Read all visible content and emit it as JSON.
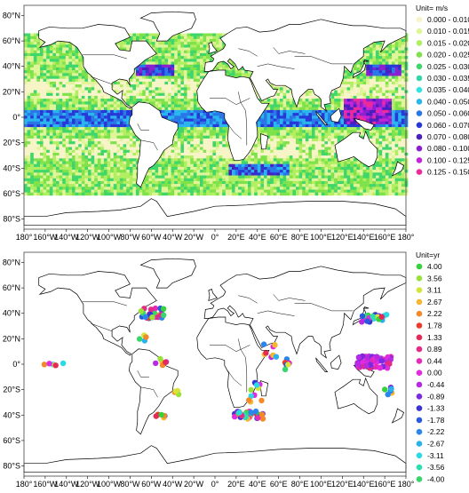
{
  "maps": [
    {
      "id": "amplitude",
      "legend_title": "Unit= m/s",
      "legend": [
        {
          "label": "0.000 - 0.010",
          "color": "#f7f4c8"
        },
        {
          "label": "0.010 - 0.015",
          "color": "#e0f59a"
        },
        {
          "label": "0.015 - 0.020",
          "color": "#b2ee62"
        },
        {
          "label": "0.020 - 0.025",
          "color": "#7fe24a"
        },
        {
          "label": "0.025 - 0.030",
          "color": "#3fd66b"
        },
        {
          "label": "0.030 - 0.035",
          "color": "#33d6a6"
        },
        {
          "label": "0.035 - 0.040",
          "color": "#2ee5e0"
        },
        {
          "label": "0.040 - 0.050",
          "color": "#29b6ee"
        },
        {
          "label": "0.050 - 0.060",
          "color": "#2a78e8"
        },
        {
          "label": "0.060 - 0.070",
          "color": "#2838d8"
        },
        {
          "label": "0.070 - 0.080",
          "color": "#4a1fbe"
        },
        {
          "label": "0.080 - 0.100",
          "color": "#8a20d0"
        },
        {
          "label": "0.100 - 0.125",
          "color": "#c425d8"
        },
        {
          "label": "0.125 - 0.150",
          "color": "#ee2a9a"
        }
      ]
    },
    {
      "id": "period",
      "legend_title": "Unit=yr",
      "legend": [
        {
          "label": "4.00",
          "color": "#36d23a"
        },
        {
          "label": "3.56",
          "color": "#9ae13a"
        },
        {
          "label": "3.11",
          "color": "#d6e53a"
        },
        {
          "label": "2.67",
          "color": "#f6b630"
        },
        {
          "label": "2.22",
          "color": "#f28a2a"
        },
        {
          "label": "1.78",
          "color": "#ec3b2b"
        },
        {
          "label": "1.33",
          "color": "#e52a55"
        },
        {
          "label": "0.89",
          "color": "#e52a88"
        },
        {
          "label": "0.44",
          "color": "#e52ab8"
        },
        {
          "label": "0.00",
          "color": "#e22ae0"
        },
        {
          "label": "-0.44",
          "color": "#b52ae2"
        },
        {
          "label": "-0.89",
          "color": "#7a2ae0"
        },
        {
          "label": "-1.33",
          "color": "#3a34d6"
        },
        {
          "label": "-1.78",
          "color": "#2a5ae0"
        },
        {
          "label": "-2.22",
          "color": "#2a86ea"
        },
        {
          "label": "-2.67",
          "color": "#2ab2ee"
        },
        {
          "label": "-3.11",
          "color": "#2ad8e6"
        },
        {
          "label": "-3.56",
          "color": "#2ae0b0"
        },
        {
          "label": "-4.00",
          "color": "#36d66a"
        }
      ]
    }
  ],
  "y_ticks": [
    "80°N",
    "60°N",
    "40°N",
    "20°N",
    "0°",
    "20°S",
    "40°S",
    "60°S",
    "80°S"
  ],
  "x_ticks": [
    "180°",
    "160°W",
    "140°W",
    "120°W",
    "100°W",
    "80°W",
    "60°W",
    "40°W",
    "20°W",
    "0°",
    "20°E",
    "40°E",
    "60°E",
    "80°E",
    "100°E",
    "120°E",
    "140°E",
    "160°E",
    "180°"
  ]
}
